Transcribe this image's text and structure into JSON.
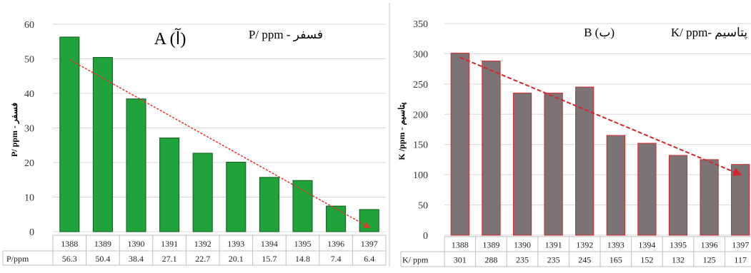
{
  "chart_data": [
    {
      "type": "bar",
      "title": "A (آ)",
      "subtitle": "P/ ppm - فسفر",
      "ylabel": "P/ ppm - فسفر",
      "xlabel": "",
      "ylim": [
        0,
        60
      ],
      "yticks": [
        0,
        10,
        20,
        30,
        40,
        50,
        60
      ],
      "categories": [
        "1388",
        "1389",
        "1390",
        "1391",
        "1392",
        "1393",
        "1394",
        "1395",
        "1396",
        "1397"
      ],
      "values": [
        56.3,
        50.4,
        38.4,
        27.1,
        22.7,
        20.1,
        15.7,
        14.8,
        7.4,
        6.4
      ],
      "value_labels": [
        "56.3",
        "50.4",
        "38.4",
        "27.1",
        "22.7",
        "20.1",
        "15.7",
        "14.8",
        "7.4",
        "6.4"
      ],
      "table_row_label": "P/ppm",
      "bar_color": "#1fa33a",
      "bar_stroke": "#0f5a1d",
      "trend_color": "#e8312a",
      "grid": true
    },
    {
      "type": "bar",
      "title": "B (ب)",
      "subtitle": "K/ ppm- پتاسیم",
      "ylabel": "K /ppm - پتاسیم",
      "xlabel": "",
      "ylim": [
        0,
        350
      ],
      "yticks": [
        0,
        50,
        100,
        150,
        200,
        250,
        300,
        350
      ],
      "categories": [
        "1388",
        "1389",
        "1390",
        "1391",
        "1392",
        "1393",
        "1394",
        "1395",
        "1396",
        "1397"
      ],
      "values": [
        301,
        288,
        235,
        235,
        245,
        165,
        152,
        132,
        125,
        117
      ],
      "value_labels": [
        "301",
        "288",
        "235",
        "235",
        "245",
        "165",
        "152",
        "132",
        "125",
        "117"
      ],
      "table_row_label": "K/ ppm",
      "bar_color": "#7b7374",
      "bar_stroke": "#d4262b",
      "trend_color": "#d4262b",
      "grid": true
    }
  ]
}
